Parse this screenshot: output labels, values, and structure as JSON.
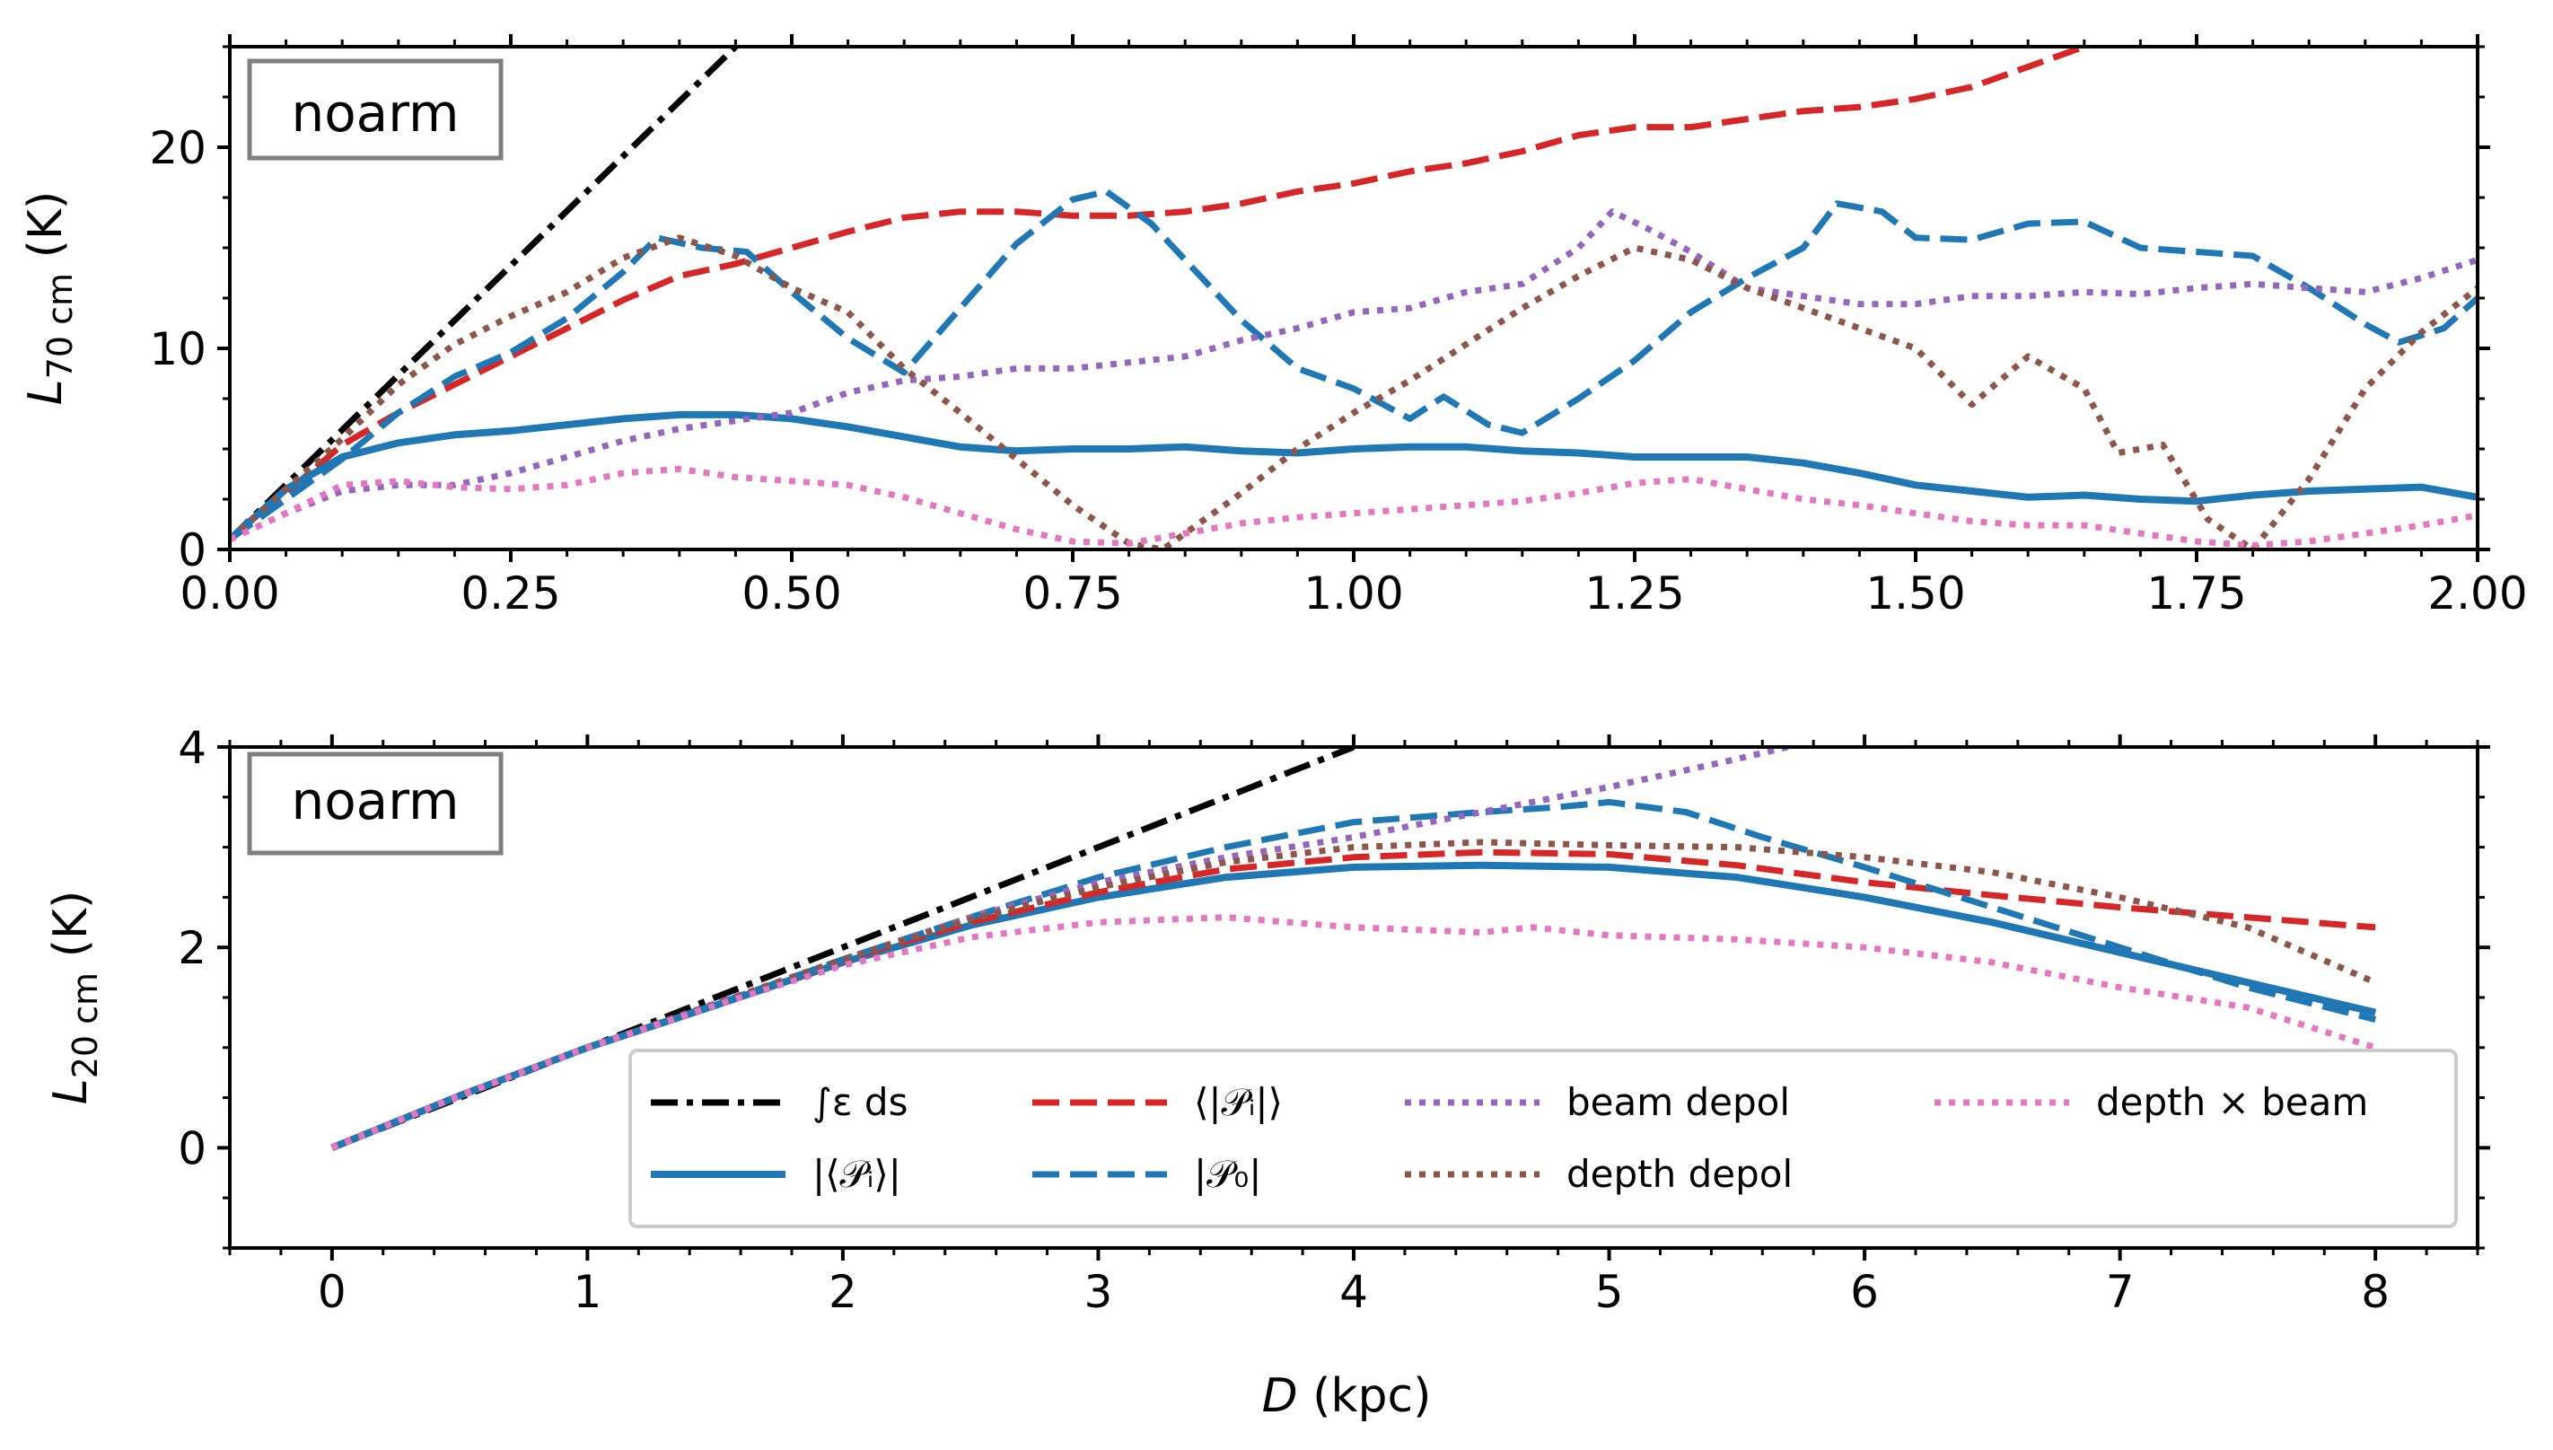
{
  "figure": {
    "shared_xlabel_main": "D",
    "shared_xlabel_unit": " (kpc)"
  },
  "chart_data": [
    {
      "id": "top",
      "type": "line",
      "panel_label": "noarm",
      "ylabel_main": "L",
      "ylabel_sub": "70 cm",
      "ylabel_unit": " (K)",
      "xlim": [
        0,
        2
      ],
      "ylim": [
        0,
        25
      ],
      "xticks": [
        0,
        0.25,
        0.5,
        0.75,
        1.0,
        1.25,
        1.5,
        1.75,
        2.0
      ],
      "xtick_labels": [
        "0.00",
        "0.25",
        "0.50",
        "0.75",
        "1.00",
        "1.25",
        "1.50",
        "1.75",
        "2.00"
      ],
      "yticks": [
        0,
        10,
        20
      ],
      "ytick_labels": [
        "0",
        "10",
        "20"
      ],
      "series": [
        {
          "key": "integral",
          "color": "#000000",
          "dash": "dashdot",
          "x": [
            0,
            0.45
          ],
          "y": [
            0.5,
            25
          ]
        },
        {
          "key": "mean_abs",
          "color": "#d62728",
          "dash": "dashed",
          "x": [
            0,
            0.05,
            0.1,
            0.15,
            0.2,
            0.25,
            0.3,
            0.35,
            0.4,
            0.45,
            0.5,
            0.55,
            0.6,
            0.65,
            0.7,
            0.75,
            0.8,
            0.85,
            0.9,
            0.95,
            1.0,
            1.05,
            1.1,
            1.15,
            1.2,
            1.25,
            1.3,
            1.35,
            1.4,
            1.45,
            1.5,
            1.55,
            1.6,
            1.65
          ],
          "y": [
            0.5,
            2.8,
            5.2,
            6.8,
            8.2,
            9.6,
            11.0,
            12.4,
            13.6,
            14.2,
            15.0,
            15.8,
            16.5,
            16.8,
            16.8,
            16.6,
            16.6,
            16.8,
            17.2,
            17.8,
            18.2,
            18.8,
            19.2,
            19.8,
            20.6,
            21.0,
            21.0,
            21.4,
            21.8,
            22.0,
            22.4,
            23.0,
            24.0,
            25.0
          ]
        },
        {
          "key": "abs_mean",
          "color": "#1f77b4",
          "dash": "solid",
          "x": [
            0,
            0.05,
            0.1,
            0.15,
            0.2,
            0.25,
            0.3,
            0.35,
            0.4,
            0.45,
            0.5,
            0.55,
            0.6,
            0.65,
            0.7,
            0.75,
            0.8,
            0.85,
            0.9,
            0.95,
            1.0,
            1.05,
            1.1,
            1.15,
            1.2,
            1.25,
            1.3,
            1.35,
            1.4,
            1.45,
            1.5,
            1.55,
            1.6,
            1.65,
            1.7,
            1.75,
            1.8,
            1.85,
            1.9,
            1.95,
            2.0
          ],
          "y": [
            0.5,
            3.0,
            4.6,
            5.3,
            5.7,
            5.9,
            6.2,
            6.5,
            6.7,
            6.7,
            6.5,
            6.1,
            5.6,
            5.1,
            4.9,
            5.0,
            5.0,
            5.1,
            4.9,
            4.8,
            5.0,
            5.1,
            5.1,
            4.9,
            4.8,
            4.6,
            4.6,
            4.6,
            4.3,
            3.8,
            3.2,
            2.9,
            2.6,
            2.7,
            2.5,
            2.4,
            2.7,
            2.9,
            3.0,
            3.1,
            2.6
          ]
        },
        {
          "key": "p0",
          "color": "#1f77b4",
          "dash": "dashed",
          "x": [
            0,
            0.05,
            0.1,
            0.15,
            0.2,
            0.25,
            0.3,
            0.35,
            0.38,
            0.42,
            0.46,
            0.5,
            0.55,
            0.6,
            0.65,
            0.7,
            0.75,
            0.78,
            0.82,
            0.86,
            0.9,
            0.95,
            1.0,
            1.05,
            1.08,
            1.12,
            1.15,
            1.2,
            1.25,
            1.3,
            1.35,
            1.4,
            1.43,
            1.47,
            1.5,
            1.55,
            1.6,
            1.65,
            1.7,
            1.75,
            1.8,
            1.85,
            1.9,
            1.93,
            1.97,
            2.0
          ],
          "y": [
            0.5,
            2.5,
            4.5,
            6.8,
            8.6,
            9.8,
            11.5,
            13.8,
            15.5,
            15.0,
            14.8,
            12.8,
            10.5,
            8.8,
            12.0,
            15.2,
            17.4,
            17.8,
            16.2,
            13.8,
            11.4,
            9.0,
            8.0,
            6.5,
            7.6,
            6.2,
            5.8,
            7.5,
            9.4,
            11.8,
            13.5,
            15.0,
            17.2,
            16.8,
            15.5,
            15.4,
            16.2,
            16.3,
            15.0,
            14.8,
            14.6,
            13.0,
            11.2,
            10.3,
            11.0,
            12.5
          ]
        },
        {
          "key": "beam",
          "color": "#9467bd",
          "dash": "dotted",
          "x": [
            0,
            0.05,
            0.1,
            0.15,
            0.2,
            0.25,
            0.3,
            0.35,
            0.4,
            0.45,
            0.5,
            0.55,
            0.6,
            0.65,
            0.7,
            0.75,
            0.8,
            0.85,
            0.9,
            0.95,
            1.0,
            1.05,
            1.1,
            1.15,
            1.2,
            1.23,
            1.26,
            1.3,
            1.35,
            1.4,
            1.45,
            1.5,
            1.55,
            1.6,
            1.65,
            1.7,
            1.75,
            1.8,
            1.85,
            1.9,
            1.95,
            2.0
          ],
          "y": [
            0.5,
            1.8,
            2.9,
            3.2,
            3.2,
            3.8,
            4.6,
            5.4,
            6.0,
            6.4,
            6.8,
            7.8,
            8.4,
            8.6,
            9.0,
            9.0,
            9.3,
            9.6,
            10.4,
            11.0,
            11.8,
            12.0,
            12.8,
            13.2,
            15.0,
            16.8,
            16.0,
            14.8,
            13.0,
            12.6,
            12.2,
            12.2,
            12.6,
            12.6,
            12.8,
            12.7,
            13.0,
            13.2,
            13.0,
            12.8,
            13.5,
            14.4
          ]
        },
        {
          "key": "depth",
          "color": "#8c564b",
          "dash": "dotted",
          "x": [
            0,
            0.05,
            0.1,
            0.15,
            0.2,
            0.25,
            0.3,
            0.35,
            0.4,
            0.45,
            0.5,
            0.55,
            0.6,
            0.65,
            0.7,
            0.75,
            0.8,
            0.83,
            0.86,
            0.9,
            0.95,
            1.0,
            1.05,
            1.1,
            1.15,
            1.2,
            1.25,
            1.3,
            1.35,
            1.4,
            1.45,
            1.5,
            1.55,
            1.6,
            1.65,
            1.68,
            1.72,
            1.76,
            1.8,
            1.85,
            1.9,
            1.95,
            2.0
          ],
          "y": [
            0.5,
            3.0,
            5.5,
            8.2,
            10.2,
            11.6,
            12.8,
            14.5,
            15.5,
            14.6,
            13.0,
            11.8,
            9.0,
            6.8,
            4.5,
            2.2,
            0.3,
            0.0,
            1.2,
            2.8,
            5.0,
            6.8,
            8.4,
            10.2,
            12.0,
            13.6,
            15.0,
            14.4,
            13.0,
            12.0,
            11.0,
            10.0,
            7.2,
            9.6,
            8.0,
            4.8,
            5.2,
            1.5,
            0.0,
            3.5,
            8.0,
            10.8,
            13.0
          ]
        },
        {
          "key": "depth_beam",
          "color": "#e377c2",
          "dash": "dotted",
          "x": [
            0,
            0.05,
            0.1,
            0.15,
            0.2,
            0.25,
            0.3,
            0.35,
            0.4,
            0.45,
            0.5,
            0.55,
            0.6,
            0.65,
            0.7,
            0.75,
            0.8,
            0.85,
            0.9,
            0.95,
            1.0,
            1.05,
            1.1,
            1.15,
            1.2,
            1.25,
            1.3,
            1.35,
            1.4,
            1.45,
            1.5,
            1.55,
            1.6,
            1.65,
            1.7,
            1.75,
            1.8,
            1.85,
            1.9,
            1.95,
            2.0
          ],
          "y": [
            0.5,
            1.8,
            3.2,
            3.4,
            3.1,
            3.0,
            3.2,
            3.8,
            4.0,
            3.6,
            3.4,
            3.2,
            2.6,
            1.8,
            1.0,
            0.4,
            0.3,
            0.8,
            1.3,
            1.6,
            1.8,
            2.0,
            2.2,
            2.4,
            2.8,
            3.3,
            3.5,
            3.0,
            2.5,
            2.2,
            1.8,
            1.4,
            1.2,
            1.2,
            0.8,
            0.4,
            0.2,
            0.4,
            0.8,
            1.2,
            1.7
          ]
        }
      ]
    },
    {
      "id": "bottom",
      "type": "line",
      "panel_label": "noarm",
      "ylabel_main": "L",
      "ylabel_sub": "20 cm",
      "ylabel_unit": " (K)",
      "xlim": [
        -0.4,
        8.4
      ],
      "ylim": [
        -1,
        4
      ],
      "xticks": [
        0,
        1,
        2,
        3,
        4,
        5,
        6,
        7,
        8
      ],
      "xtick_labels": [
        "0",
        "1",
        "2",
        "3",
        "4",
        "5",
        "6",
        "7",
        "8"
      ],
      "yticks": [
        0,
        2,
        4
      ],
      "ytick_labels": [
        "0",
        "2",
        "4"
      ],
      "series": [
        {
          "key": "integral",
          "color": "#000000",
          "dash": "dashdot",
          "x": [
            0,
            4
          ],
          "y": [
            0,
            4
          ]
        },
        {
          "key": "abs_mean",
          "color": "#1f77b4",
          "dash": "solid",
          "x": [
            0,
            0.5,
            1,
            1.5,
            2,
            2.5,
            3,
            3.5,
            4,
            4.5,
            5,
            5.5,
            6,
            6.5,
            7,
            7.5,
            8
          ],
          "y": [
            0,
            0.52,
            1.0,
            1.42,
            1.85,
            2.22,
            2.5,
            2.7,
            2.8,
            2.82,
            2.8,
            2.7,
            2.5,
            2.25,
            1.95,
            1.65,
            1.35
          ]
        },
        {
          "key": "mean_abs",
          "color": "#d62728",
          "dash": "dashed",
          "x": [
            0,
            0.5,
            1,
            1.5,
            2,
            2.5,
            3,
            3.5,
            4,
            4.5,
            5,
            5.5,
            6,
            6.5,
            7,
            7.5,
            8
          ],
          "y": [
            0,
            0.52,
            1.0,
            1.43,
            1.87,
            2.25,
            2.55,
            2.78,
            2.9,
            2.95,
            2.93,
            2.82,
            2.65,
            2.52,
            2.4,
            2.3,
            2.2
          ]
        },
        {
          "key": "p0",
          "color": "#1f77b4",
          "dash": "dashed",
          "x": [
            0,
            0.5,
            1,
            1.5,
            2,
            2.5,
            3,
            3.5,
            4,
            4.5,
            4.8,
            5,
            5.3,
            5.6,
            6,
            6.5,
            7,
            7.5,
            8
          ],
          "y": [
            0,
            0.52,
            1.0,
            1.43,
            1.88,
            2.3,
            2.7,
            3.0,
            3.25,
            3.35,
            3.4,
            3.45,
            3.35,
            3.1,
            2.8,
            2.4,
            2.0,
            1.6,
            1.28
          ]
        },
        {
          "key": "beam",
          "color": "#9467bd",
          "dash": "dotted",
          "x": [
            0,
            0.5,
            1,
            1.5,
            2,
            2.5,
            3,
            3.5,
            4,
            4.5,
            5,
            5.5,
            5.7
          ],
          "y": [
            0,
            0.52,
            1.0,
            1.44,
            1.88,
            2.3,
            2.65,
            2.9,
            3.1,
            3.35,
            3.6,
            3.88,
            4.0
          ]
        },
        {
          "key": "depth",
          "color": "#8c564b",
          "dash": "dotted",
          "x": [
            0,
            0.5,
            1,
            1.5,
            2,
            2.5,
            3,
            3.5,
            4,
            4.5,
            5,
            5.5,
            6,
            6.5,
            7,
            7.5,
            8
          ],
          "y": [
            0,
            0.52,
            1.0,
            1.43,
            1.88,
            2.28,
            2.6,
            2.85,
            3.0,
            3.05,
            3.02,
            3.0,
            2.9,
            2.75,
            2.5,
            2.2,
            1.65
          ]
        },
        {
          "key": "depth_beam",
          "color": "#e377c2",
          "dash": "dotted",
          "x": [
            0,
            0.5,
            1,
            1.5,
            2,
            2.5,
            3,
            3.5,
            4,
            4.5,
            4.7,
            5,
            5.5,
            6,
            6.5,
            7,
            7.5,
            8
          ],
          "y": [
            0,
            0.52,
            1.0,
            1.42,
            1.82,
            2.1,
            2.25,
            2.3,
            2.2,
            2.15,
            2.2,
            2.12,
            2.08,
            2.0,
            1.85,
            1.6,
            1.4,
            1.0
          ]
        }
      ]
    }
  ],
  "legend": [
    {
      "key": "integral",
      "color": "#000000",
      "dash": "dashdot",
      "label": "∫ε ds"
    },
    {
      "key": "abs_mean",
      "color": "#1f77b4",
      "dash": "solid",
      "label": "|⟨𝒫ᵢ⟩|"
    },
    {
      "key": "mean_abs",
      "color": "#d62728",
      "dash": "dashed",
      "label": "⟨|𝒫ᵢ|⟩"
    },
    {
      "key": "p0",
      "color": "#1f77b4",
      "dash": "dashed",
      "label": "|𝒫₀|"
    },
    {
      "key": "beam",
      "color": "#9467bd",
      "dash": "dotted",
      "label": "beam depol"
    },
    {
      "key": "depth",
      "color": "#8c564b",
      "dash": "dotted",
      "label": "depth depol"
    },
    {
      "key": "depth_beam",
      "color": "#e377c2",
      "dash": "dotted",
      "label": "depth × beam"
    }
  ]
}
